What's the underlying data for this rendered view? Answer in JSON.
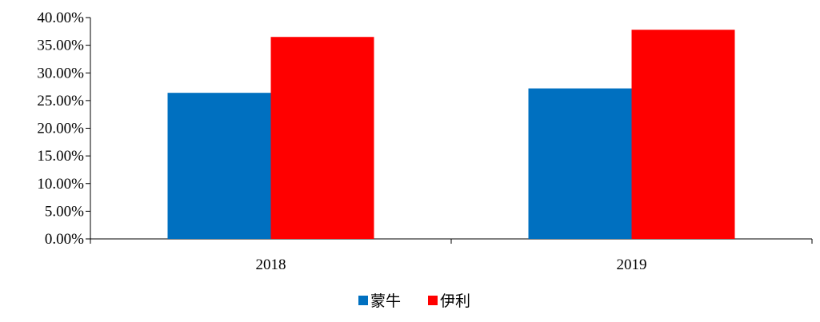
{
  "chart_data": {
    "type": "bar",
    "categories": [
      "2018",
      "2019"
    ],
    "series": [
      {
        "name": "蒙牛",
        "color": "#0070C0",
        "values": [
          26.4,
          27.2
        ]
      },
      {
        "name": "伊利",
        "color": "#FF0000",
        "values": [
          36.5,
          37.8
        ]
      }
    ],
    "y_ticks": [
      "0.00%",
      "5.00%",
      "10.00%",
      "15.00%",
      "20.00%",
      "25.00%",
      "30.00%",
      "35.00%",
      "40.00%"
    ],
    "ylim": [
      0,
      40
    ],
    "y_unit": "percent",
    "grid": false,
    "legend_position": "bottom-center",
    "title": "",
    "xlabel": "",
    "ylabel": ""
  }
}
